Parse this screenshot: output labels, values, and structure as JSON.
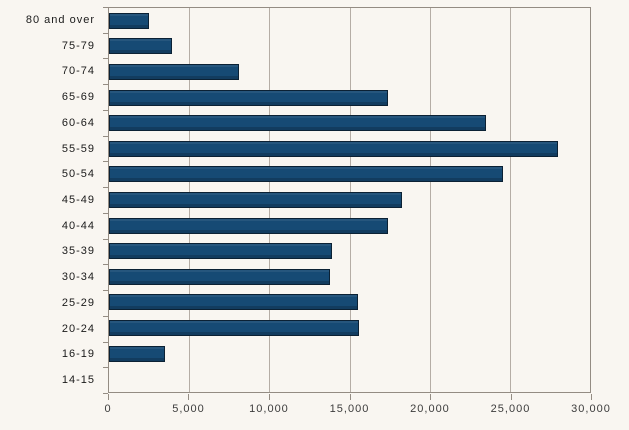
{
  "chart_data": {
    "type": "bar",
    "orientation": "horizontal",
    "title": "",
    "xlabel": "",
    "ylabel": "",
    "categories": [
      "80 and over",
      "75-79",
      "70-74",
      "65-69",
      "60-64",
      "55-59",
      "50-54",
      "45-49",
      "40-44",
      "35-39",
      "30-34",
      "25-29",
      "20-24",
      "16-19",
      "14-15"
    ],
    "values": [
      2500,
      3900,
      8100,
      17400,
      23500,
      28000,
      24600,
      18300,
      17400,
      13900,
      13800,
      15500,
      15600,
      3500,
      0
    ],
    "xlim": [
      0,
      30000
    ],
    "x_ticks": [
      {
        "value": 0,
        "label": "0"
      },
      {
        "value": 5000,
        "label": "5,000"
      },
      {
        "value": 10000,
        "label": "10,000"
      },
      {
        "value": 15000,
        "label": "15,000"
      },
      {
        "value": 20000,
        "label": "20,000"
      },
      {
        "value": 25000,
        "label": "25,000"
      },
      {
        "value": 30000,
        "label": "30,000"
      }
    ],
    "grid": true,
    "legend": false
  },
  "style": {
    "background": "#f9f6f1",
    "bar_fill": "#164a74",
    "bar_border": "#0b2134",
    "gridline_color": "#b5ada5",
    "axis_color": "#948c83",
    "y_label_color": "#1a1a1a",
    "x_label_color": "#3c3c3c"
  }
}
